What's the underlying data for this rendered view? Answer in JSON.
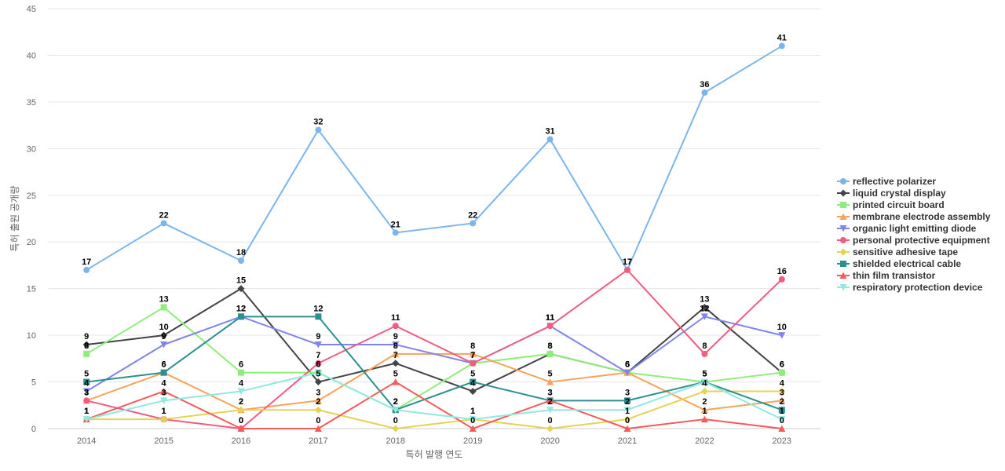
{
  "chart_data": {
    "type": "line",
    "title": "",
    "xlabel": "특허 발행 연도",
    "ylabel": "특허 출원 공개량",
    "ylim": [
      0,
      45
    ],
    "yticks": [
      0,
      5,
      10,
      15,
      20,
      25,
      30,
      35,
      40,
      45
    ],
    "grid": true,
    "legend_position": "right",
    "categories": [
      "2014",
      "2015",
      "2016",
      "2017",
      "2018",
      "2019",
      "2020",
      "2021",
      "2022",
      "2023"
    ],
    "series": [
      {
        "name": "reflective polarizer",
        "color": "#7cb5ec",
        "marker": "circle",
        "values": [
          17,
          22,
          18,
          32,
          21,
          22,
          31,
          17,
          36,
          41
        ]
      },
      {
        "name": "liquid crystal display",
        "color": "#434348",
        "marker": "diamond",
        "values": [
          9,
          10,
          15,
          5,
          7,
          4,
          8,
          6,
          13,
          6
        ]
      },
      {
        "name": "printed circuit board",
        "color": "#90ed7d",
        "marker": "square",
        "values": [
          8,
          13,
          6,
          6,
          2,
          7,
          8,
          6,
          5,
          6
        ]
      },
      {
        "name": "membrane electrode assembly",
        "color": "#f7a35c",
        "marker": "triangle",
        "values": [
          3,
          6,
          2,
          3,
          8,
          8,
          5,
          6,
          2,
          3
        ]
      },
      {
        "name": "organic light emitting diode",
        "color": "#8085e9",
        "marker": "triangle-down",
        "values": [
          4,
          9,
          12,
          9,
          9,
          7,
          11,
          6,
          12,
          10
        ]
      },
      {
        "name": "personal protective equipment",
        "color": "#f15c80",
        "marker": "circle",
        "values": [
          3,
          1,
          0,
          7,
          11,
          7,
          11,
          17,
          8,
          16
        ]
      },
      {
        "name": "sensitive adhesive tape",
        "color": "#e4d354",
        "marker": "diamond",
        "values": [
          1,
          1,
          2,
          2,
          0,
          1,
          0,
          1,
          4,
          4
        ]
      },
      {
        "name": "shielded electrical cable",
        "color": "#2b908f",
        "marker": "square",
        "values": [
          5,
          6,
          12,
          12,
          2,
          5,
          3,
          3,
          5,
          2
        ]
      },
      {
        "name": "thin film transistor",
        "color": "#f45b5b",
        "marker": "triangle",
        "values": [
          1,
          4,
          0,
          0,
          5,
          0,
          3,
          0,
          1,
          0
        ]
      },
      {
        "name": "respiratory protection device",
        "color": "#91e8e1",
        "marker": "triangle-down",
        "values": [
          1,
          3,
          4,
          6,
          2,
          1,
          2,
          2,
          5,
          1
        ]
      }
    ]
  }
}
